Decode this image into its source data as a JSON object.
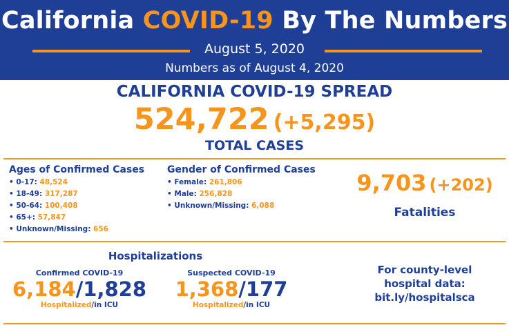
{
  "header": {
    "title_pre": "California ",
    "title_highlight": "COVID-19",
    "title_post": " By The Numbers",
    "date": "August 5, 2020",
    "as_of": "Numbers as of August 4, 2020"
  },
  "spread": {
    "title": "CALIFORNIA COVID-19 SPREAD",
    "total": "524,722",
    "delta": "(+5,295)",
    "label": "TOTAL CASES"
  },
  "ages": {
    "title": "Ages of Confirmed Cases",
    "items": [
      {
        "label": "• 0-17: ",
        "value": "48,524"
      },
      {
        "label": "• 18-49: ",
        "value": "317,287"
      },
      {
        "label": "• 50-64: ",
        "value": "100,408"
      },
      {
        "label": "• 65+: ",
        "value": "57,847"
      },
      {
        "label": "• Unknown/Missing: ",
        "value": "656"
      }
    ]
  },
  "gender": {
    "title": "Gender of Confirmed Cases",
    "items": [
      {
        "label": "• Female: ",
        "value": "261,806"
      },
      {
        "label": "• Male: ",
        "value": "256,828"
      },
      {
        "label": "• Unknown/Missing: ",
        "value": "6,088"
      }
    ]
  },
  "fatalities": {
    "count": "9,703",
    "delta": "(+202)",
    "label": "Fatalities"
  },
  "hospitalizations": {
    "title": "Hospitalizations",
    "confirmed": {
      "label": "Confirmed COVID-19",
      "hospitalized": "6,184",
      "separator": "/",
      "icu": "1,828",
      "foot_hosp": "Hospitalized",
      "foot_icu": "/in ICU"
    },
    "suspected": {
      "label": "Suspected COVID-19",
      "hospitalized": "1,368",
      "separator": "/",
      "icu": "177",
      "foot_hosp": "Hospitalized",
      "foot_icu": "/in ICU"
    }
  },
  "county": {
    "line1": "For county-level",
    "line2": "hospital data:",
    "line3": "bit.ly/hospitalsca"
  },
  "colors": {
    "navy": "#1f3f97",
    "orange": "#f7941d"
  }
}
